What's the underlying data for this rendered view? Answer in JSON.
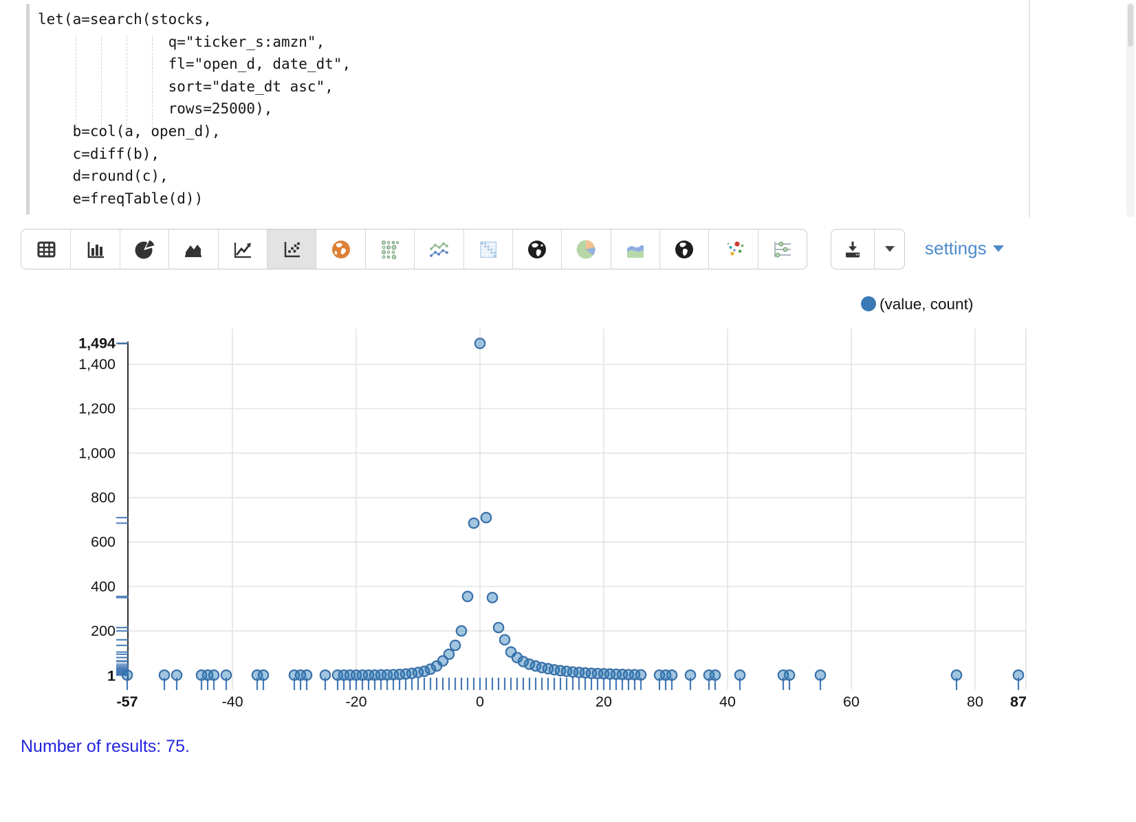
{
  "code": {
    "text": "let(a=search(stocks,\n               q=\"ticker_s:amzn\",\n               fl=\"open_d, date_dt\",\n               sort=\"date_dt asc\",\n               rows=25000),\n    b=col(a, open_d),\n    c=diff(b),\n    d=round(c),\n    e=freqTable(d))"
  },
  "toolbar": {
    "viz_icons": [
      {
        "icon": "table-icon",
        "selected": false
      },
      {
        "icon": "bar-chart-icon",
        "selected": false
      },
      {
        "icon": "pie-chart-icon",
        "selected": false
      },
      {
        "icon": "area-chart-icon",
        "selected": false
      },
      {
        "icon": "line-chart-icon",
        "selected": false
      },
      {
        "icon": "scatter-plot-icon",
        "selected": true
      },
      {
        "icon": "globe-orange-icon",
        "selected": false
      },
      {
        "icon": "bubble-grid-icon",
        "selected": false
      },
      {
        "icon": "multi-line-icon",
        "selected": false
      },
      {
        "icon": "heatmap-icon",
        "selected": false
      },
      {
        "icon": "globe-dark-icon",
        "selected": false
      },
      {
        "icon": "pie-pastel-icon",
        "selected": false
      },
      {
        "icon": "stream-area-icon",
        "selected": false
      },
      {
        "icon": "globe-dark2-icon",
        "selected": false
      },
      {
        "icon": "scatter-color-icon",
        "selected": false
      },
      {
        "icon": "parallel-coords-icon",
        "selected": false
      }
    ],
    "download_icon": "download-icon",
    "caret_icon": "caret-down-icon",
    "settings_label": "settings"
  },
  "legend": {
    "label": "(value, count)",
    "marker_color": "#3b79b5"
  },
  "chart_data": {
    "type": "scatter",
    "title": "",
    "xlabel": "",
    "ylabel": "",
    "legend": "(value, count)",
    "grid": true,
    "x_range": [
      -57,
      87
    ],
    "x_ticks_labeled": [
      -40,
      -20,
      0,
      20,
      40,
      60,
      80
    ],
    "x_edge_labels": [
      "-57",
      "87"
    ],
    "y_ticks": [
      200,
      400,
      600,
      800,
      1000,
      1200,
      1400
    ],
    "y_min": 1,
    "y_max": 1494,
    "y_top_label": "1,494",
    "y_bottom_label": "1",
    "point_fill": "#1f77b4",
    "point_stroke": "#3a6fa8",
    "rug_color": "#4579b6",
    "points": [
      [
        -57,
        1
      ],
      [
        -51,
        1
      ],
      [
        -49,
        1
      ],
      [
        -45,
        1
      ],
      [
        -44,
        1
      ],
      [
        -43,
        1
      ],
      [
        -41,
        1
      ],
      [
        -36,
        1
      ],
      [
        -35,
        1
      ],
      [
        -30,
        1
      ],
      [
        -29,
        1
      ],
      [
        -28,
        1
      ],
      [
        -25,
        1
      ],
      [
        -23,
        1
      ],
      [
        -22,
        1
      ],
      [
        -21,
        1
      ],
      [
        -20,
        1
      ],
      [
        -19,
        1
      ],
      [
        -18,
        1
      ],
      [
        -17,
        1
      ],
      [
        -16,
        2
      ],
      [
        -15,
        2
      ],
      [
        -14,
        3
      ],
      [
        -13,
        4
      ],
      [
        -12,
        6
      ],
      [
        -11,
        9
      ],
      [
        -10,
        13
      ],
      [
        -9,
        18
      ],
      [
        -8,
        28
      ],
      [
        -7,
        42
      ],
      [
        -6,
        65
      ],
      [
        -5,
        95
      ],
      [
        -4,
        135
      ],
      [
        -3,
        200
      ],
      [
        -2,
        355
      ],
      [
        -1,
        685
      ],
      [
        0,
        1494
      ],
      [
        1,
        710
      ],
      [
        2,
        350
      ],
      [
        3,
        215
      ],
      [
        4,
        160
      ],
      [
        5,
        105
      ],
      [
        6,
        80
      ],
      [
        7,
        62
      ],
      [
        8,
        50
      ],
      [
        9,
        42
      ],
      [
        10,
        35
      ],
      [
        11,
        30
      ],
      [
        12,
        25
      ],
      [
        13,
        21
      ],
      [
        14,
        18
      ],
      [
        15,
        15
      ],
      [
        16,
        13
      ],
      [
        17,
        11
      ],
      [
        18,
        9
      ],
      [
        19,
        8
      ],
      [
        20,
        7
      ],
      [
        21,
        6
      ],
      [
        22,
        5
      ],
      [
        23,
        4
      ],
      [
        24,
        3
      ],
      [
        25,
        3
      ],
      [
        26,
        2
      ],
      [
        29,
        1
      ],
      [
        30,
        1
      ],
      [
        31,
        1
      ],
      [
        34,
        1
      ],
      [
        37,
        1
      ],
      [
        38,
        1
      ],
      [
        42,
        1
      ],
      [
        49,
        1
      ],
      [
        50,
        1
      ],
      [
        55,
        1
      ],
      [
        77,
        1
      ],
      [
        87,
        1
      ]
    ]
  },
  "footer": {
    "results_text": "Number of results: 75."
  }
}
